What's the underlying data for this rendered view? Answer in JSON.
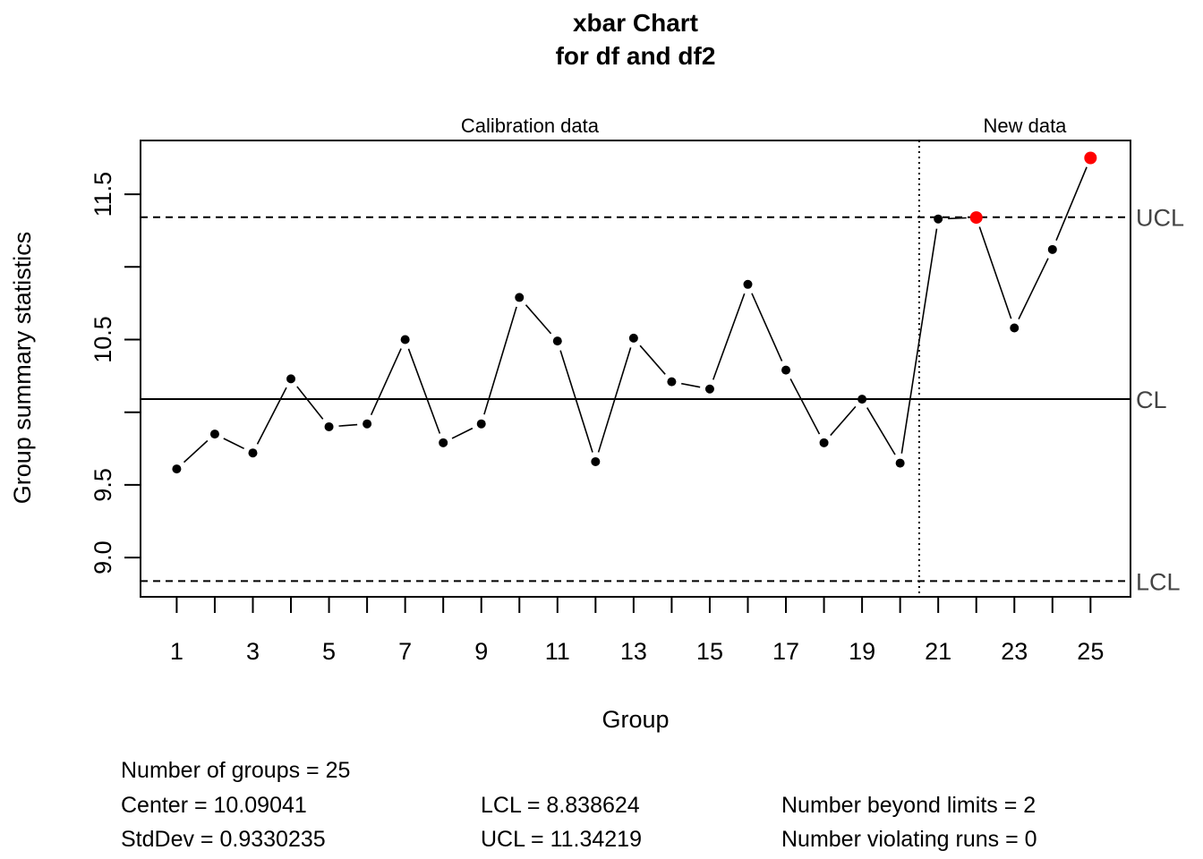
{
  "chart_data": {
    "type": "line",
    "title": "xbar Chart",
    "subtitle": "for df and df2",
    "xlabel": "Group",
    "ylabel": "Group summary statistics",
    "xlim": [
      0.05,
      26.05
    ],
    "ylim": [
      8.73,
      11.87
    ],
    "x_ticks": [
      1,
      2,
      3,
      4,
      5,
      6,
      7,
      8,
      9,
      10,
      11,
      12,
      13,
      14,
      15,
      16,
      17,
      18,
      19,
      20,
      21,
      22,
      23,
      24,
      25
    ],
    "x_tick_labels": [
      "1",
      "",
      "3",
      "",
      "5",
      "",
      "7",
      "",
      "9",
      "",
      "11",
      "",
      "13",
      "",
      "15",
      "",
      "17",
      "",
      "19",
      "",
      "21",
      "",
      "23",
      "",
      "25"
    ],
    "y_ticks": [
      9.0,
      9.5,
      10.0,
      10.5,
      11.0,
      11.5
    ],
    "y_tick_labels": [
      "9.0",
      "9.5",
      "",
      "10.5",
      "",
      "11.5"
    ],
    "sections": [
      {
        "label": "Calibration data"
      },
      {
        "label": "New data"
      }
    ],
    "calibration_end": 20.5,
    "x": [
      1,
      2,
      3,
      4,
      5,
      6,
      7,
      8,
      9,
      10,
      11,
      12,
      13,
      14,
      15,
      16,
      17,
      18,
      19,
      20,
      21,
      22,
      23,
      24,
      25
    ],
    "values": [
      9.61,
      9.85,
      9.72,
      10.23,
      9.9,
      9.92,
      10.5,
      9.79,
      9.92,
      10.79,
      10.49,
      9.66,
      10.51,
      10.21,
      10.16,
      10.88,
      10.29,
      9.79,
      10.09,
      9.65,
      11.33,
      11.34,
      10.58,
      11.12,
      11.75
    ],
    "beyond_limits": [
      22,
      25
    ],
    "limits": {
      "center": 10.09041,
      "lcl": 8.838624,
      "ucl": 11.34219
    },
    "limit_labels": {
      "ucl": "UCL",
      "cl": "CL",
      "lcl": "LCL"
    },
    "colors": {
      "points": "#000000",
      "violation": "#ff0000",
      "line": "#000000"
    },
    "grid": false
  },
  "stats": {
    "groups": "Number of groups = 25",
    "center": "Center = 10.09041",
    "stddev": "StdDev = 0.9330235",
    "lcl": "LCL = 8.838624",
    "ucl": "UCL = 11.34219",
    "beyond": "Number beyond limits = 2",
    "runs": "Number violating runs = 0"
  }
}
